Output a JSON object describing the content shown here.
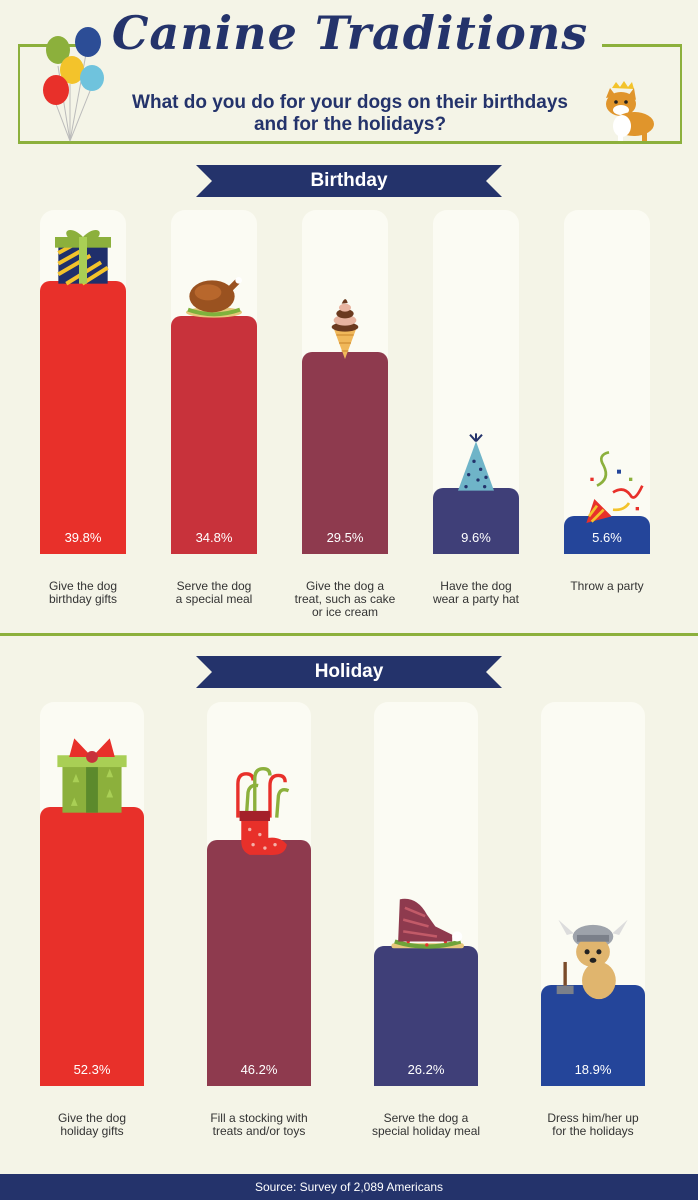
{
  "header": {
    "title": "Canine Traditions",
    "subtitle_line1": "What do you do for your dogs on their birthdays",
    "subtitle_line2": "and for the holidays?"
  },
  "colors": {
    "background": "#f4f4e7",
    "navy": "#24336b",
    "green": "#8cb03c",
    "red": "#e8302a",
    "crimson": "#c8323b",
    "maroon": "#8e3a4e",
    "slate": "#3f3f78",
    "blue": "#24459a"
  },
  "footer": {
    "source": "Source: Survey of 2,089 Americans"
  },
  "chart_data": [
    {
      "type": "bar",
      "title": "Birthday",
      "categories": [
        "Give the dog birthday gifts",
        "Serve the dog a special meal",
        "Give the dog a treat, such as cake or ice cream",
        "Have the dog wear a party hat",
        "Throw a party"
      ],
      "category_lines": [
        [
          "Give the dog",
          "birthday gifts"
        ],
        [
          "Serve the dog",
          "a special meal"
        ],
        [
          "Give the dog a",
          "treat, such as cake",
          "or ice cream"
        ],
        [
          "Have the dog",
          "wear a party hat"
        ],
        [
          "Throw a party"
        ]
      ],
      "values": [
        39.8,
        34.8,
        29.5,
        9.6,
        5.6
      ],
      "labels": [
        "39.8%",
        "34.8%",
        "29.5%",
        "9.6%",
        "5.6%"
      ],
      "bar_colors": [
        "#e8302a",
        "#c8323b",
        "#8e3a4e",
        "#3f3f78",
        "#24459a"
      ],
      "icons": [
        "gift-icon",
        "roast-turkey-icon",
        "ice-cream-cone-icon",
        "party-hat-icon",
        "party-popper-icon"
      ]
    },
    {
      "type": "bar",
      "title": "Holiday",
      "categories": [
        "Give the dog holiday gifts",
        "Fill a stocking with treats and/or toys",
        "Serve the dog a special holiday meal",
        "Dress him/her up for the holidays"
      ],
      "category_lines": [
        [
          "Give the dog",
          "holiday gifts"
        ],
        [
          "Fill a stocking with",
          "treats and/or toys"
        ],
        [
          "Serve the dog a",
          "special holiday meal"
        ],
        [
          "Dress him/her up",
          "for the holidays"
        ]
      ],
      "values": [
        52.3,
        46.2,
        26.2,
        18.9
      ],
      "labels": [
        "52.3%",
        "46.2%",
        "26.2%",
        "18.9%"
      ],
      "bar_colors": [
        "#e8302a",
        "#8e3a4e",
        "#3f3f78",
        "#24459a"
      ],
      "icons": [
        "holiday-gift-icon",
        "candy-cane-stocking-icon",
        "holiday-ham-icon",
        "viking-dog-icon"
      ]
    }
  ]
}
